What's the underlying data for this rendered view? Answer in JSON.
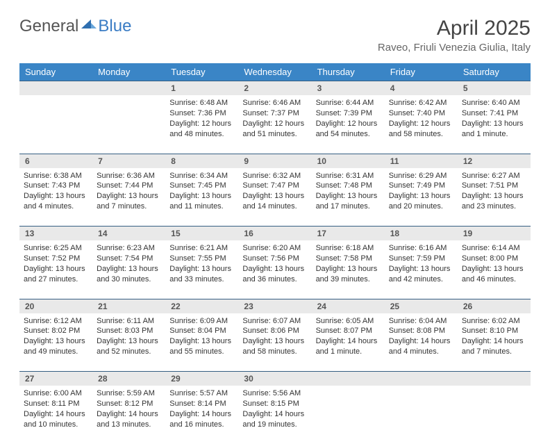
{
  "logo": {
    "text1": "General",
    "text2": "Blue"
  },
  "title": "April 2025",
  "location": "Raveo, Friuli Venezia Giulia, Italy",
  "colors": {
    "header_bg": "#3a85c6",
    "header_text": "#ffffff",
    "daynum_bg": "#e9e9e9",
    "rule": "#355e82",
    "body_text": "#333333",
    "logo_blue": "#3a7cc4"
  },
  "day_headers": [
    "Sunday",
    "Monday",
    "Tuesday",
    "Wednesday",
    "Thursday",
    "Friday",
    "Saturday"
  ],
  "weeks": [
    [
      null,
      null,
      {
        "n": "1",
        "sunrise": "Sunrise: 6:48 AM",
        "sunset": "Sunset: 7:36 PM",
        "daylight": "Daylight: 12 hours and 48 minutes."
      },
      {
        "n": "2",
        "sunrise": "Sunrise: 6:46 AM",
        "sunset": "Sunset: 7:37 PM",
        "daylight": "Daylight: 12 hours and 51 minutes."
      },
      {
        "n": "3",
        "sunrise": "Sunrise: 6:44 AM",
        "sunset": "Sunset: 7:39 PM",
        "daylight": "Daylight: 12 hours and 54 minutes."
      },
      {
        "n": "4",
        "sunrise": "Sunrise: 6:42 AM",
        "sunset": "Sunset: 7:40 PM",
        "daylight": "Daylight: 12 hours and 58 minutes."
      },
      {
        "n": "5",
        "sunrise": "Sunrise: 6:40 AM",
        "sunset": "Sunset: 7:41 PM",
        "daylight": "Daylight: 13 hours and 1 minute."
      }
    ],
    [
      {
        "n": "6",
        "sunrise": "Sunrise: 6:38 AM",
        "sunset": "Sunset: 7:43 PM",
        "daylight": "Daylight: 13 hours and 4 minutes."
      },
      {
        "n": "7",
        "sunrise": "Sunrise: 6:36 AM",
        "sunset": "Sunset: 7:44 PM",
        "daylight": "Daylight: 13 hours and 7 minutes."
      },
      {
        "n": "8",
        "sunrise": "Sunrise: 6:34 AM",
        "sunset": "Sunset: 7:45 PM",
        "daylight": "Daylight: 13 hours and 11 minutes."
      },
      {
        "n": "9",
        "sunrise": "Sunrise: 6:32 AM",
        "sunset": "Sunset: 7:47 PM",
        "daylight": "Daylight: 13 hours and 14 minutes."
      },
      {
        "n": "10",
        "sunrise": "Sunrise: 6:31 AM",
        "sunset": "Sunset: 7:48 PM",
        "daylight": "Daylight: 13 hours and 17 minutes."
      },
      {
        "n": "11",
        "sunrise": "Sunrise: 6:29 AM",
        "sunset": "Sunset: 7:49 PM",
        "daylight": "Daylight: 13 hours and 20 minutes."
      },
      {
        "n": "12",
        "sunrise": "Sunrise: 6:27 AM",
        "sunset": "Sunset: 7:51 PM",
        "daylight": "Daylight: 13 hours and 23 minutes."
      }
    ],
    [
      {
        "n": "13",
        "sunrise": "Sunrise: 6:25 AM",
        "sunset": "Sunset: 7:52 PM",
        "daylight": "Daylight: 13 hours and 27 minutes."
      },
      {
        "n": "14",
        "sunrise": "Sunrise: 6:23 AM",
        "sunset": "Sunset: 7:54 PM",
        "daylight": "Daylight: 13 hours and 30 minutes."
      },
      {
        "n": "15",
        "sunrise": "Sunrise: 6:21 AM",
        "sunset": "Sunset: 7:55 PM",
        "daylight": "Daylight: 13 hours and 33 minutes."
      },
      {
        "n": "16",
        "sunrise": "Sunrise: 6:20 AM",
        "sunset": "Sunset: 7:56 PM",
        "daylight": "Daylight: 13 hours and 36 minutes."
      },
      {
        "n": "17",
        "sunrise": "Sunrise: 6:18 AM",
        "sunset": "Sunset: 7:58 PM",
        "daylight": "Daylight: 13 hours and 39 minutes."
      },
      {
        "n": "18",
        "sunrise": "Sunrise: 6:16 AM",
        "sunset": "Sunset: 7:59 PM",
        "daylight": "Daylight: 13 hours and 42 minutes."
      },
      {
        "n": "19",
        "sunrise": "Sunrise: 6:14 AM",
        "sunset": "Sunset: 8:00 PM",
        "daylight": "Daylight: 13 hours and 46 minutes."
      }
    ],
    [
      {
        "n": "20",
        "sunrise": "Sunrise: 6:12 AM",
        "sunset": "Sunset: 8:02 PM",
        "daylight": "Daylight: 13 hours and 49 minutes."
      },
      {
        "n": "21",
        "sunrise": "Sunrise: 6:11 AM",
        "sunset": "Sunset: 8:03 PM",
        "daylight": "Daylight: 13 hours and 52 minutes."
      },
      {
        "n": "22",
        "sunrise": "Sunrise: 6:09 AM",
        "sunset": "Sunset: 8:04 PM",
        "daylight": "Daylight: 13 hours and 55 minutes."
      },
      {
        "n": "23",
        "sunrise": "Sunrise: 6:07 AM",
        "sunset": "Sunset: 8:06 PM",
        "daylight": "Daylight: 13 hours and 58 minutes."
      },
      {
        "n": "24",
        "sunrise": "Sunrise: 6:05 AM",
        "sunset": "Sunset: 8:07 PM",
        "daylight": "Daylight: 14 hours and 1 minute."
      },
      {
        "n": "25",
        "sunrise": "Sunrise: 6:04 AM",
        "sunset": "Sunset: 8:08 PM",
        "daylight": "Daylight: 14 hours and 4 minutes."
      },
      {
        "n": "26",
        "sunrise": "Sunrise: 6:02 AM",
        "sunset": "Sunset: 8:10 PM",
        "daylight": "Daylight: 14 hours and 7 minutes."
      }
    ],
    [
      {
        "n": "27",
        "sunrise": "Sunrise: 6:00 AM",
        "sunset": "Sunset: 8:11 PM",
        "daylight": "Daylight: 14 hours and 10 minutes."
      },
      {
        "n": "28",
        "sunrise": "Sunrise: 5:59 AM",
        "sunset": "Sunset: 8:12 PM",
        "daylight": "Daylight: 14 hours and 13 minutes."
      },
      {
        "n": "29",
        "sunrise": "Sunrise: 5:57 AM",
        "sunset": "Sunset: 8:14 PM",
        "daylight": "Daylight: 14 hours and 16 minutes."
      },
      {
        "n": "30",
        "sunrise": "Sunrise: 5:56 AM",
        "sunset": "Sunset: 8:15 PM",
        "daylight": "Daylight: 14 hours and 19 minutes."
      },
      null,
      null,
      null
    ]
  ]
}
